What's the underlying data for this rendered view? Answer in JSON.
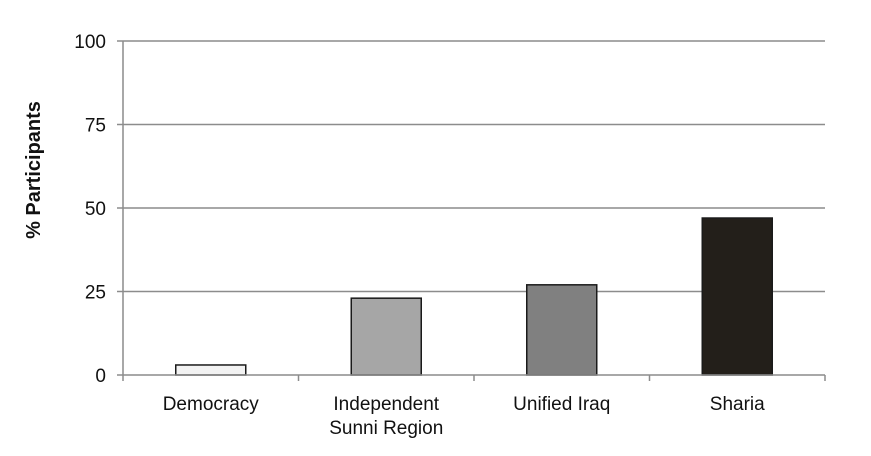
{
  "chart_data": {
    "type": "bar",
    "title": "",
    "xlabel": "",
    "ylabel": "% Participants",
    "ylim": [
      0,
      100
    ],
    "yticks": [
      0,
      25,
      50,
      75,
      100
    ],
    "grid": true,
    "categories": [
      [
        "Democracy"
      ],
      [
        "Independent",
        "Sunni Region"
      ],
      [
        "Unified Iraq"
      ],
      [
        "Sharia"
      ]
    ],
    "values": [
      3,
      23,
      27,
      47
    ],
    "colors": [
      "#f2f2f2",
      "#a6a6a6",
      "#808080",
      "#231f1a"
    ]
  }
}
